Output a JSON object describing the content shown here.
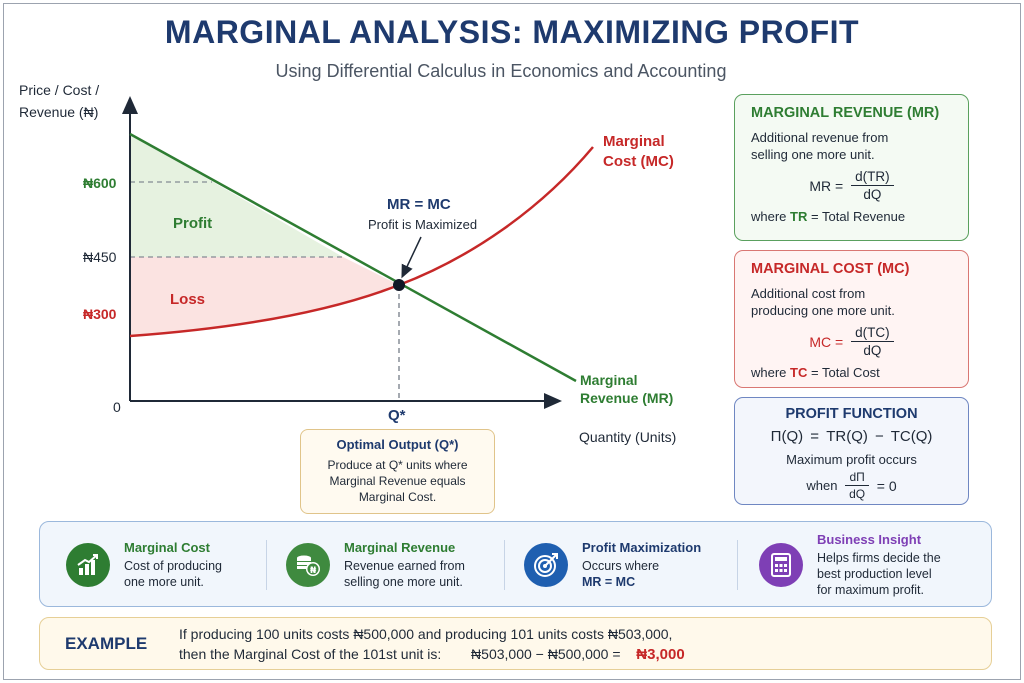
{
  "header": {
    "title": "MARGINAL ANALYSIS: MAXIMIZING PROFIT",
    "subtitle": "Using Differential Calculus in Economics and Accounting"
  },
  "colors": {
    "navy": "#1e3a6e",
    "green": "#2e7d32",
    "red": "#c62828",
    "purple": "#7e3fb5",
    "blue": "#1f5fb0"
  },
  "chart": {
    "y_axis_label_line1": "Price / Cost /",
    "y_axis_label_line2": "Revenue (₦)",
    "x_axis_label": "Quantity (Units)",
    "origin_label": "0",
    "y_ticks": [
      {
        "value": 600,
        "label": "₦600"
      },
      {
        "value": 450,
        "label": "₦450"
      },
      {
        "value": 300,
        "label": "₦300"
      }
    ],
    "q_star_label": "Q*",
    "mc_label_line1": "Marginal",
    "mc_label_line2": "Cost (MC)",
    "mr_label_line1": "Marginal",
    "mr_label_line2": "Revenue (MR)",
    "profit_label": "Profit",
    "loss_label": "Loss",
    "eq_label": "MR = MC",
    "eq_sub": "Profit is Maximized"
  },
  "optimal": {
    "title": "Optimal Output (Q*)",
    "lines": [
      "Produce at Q* units where",
      "Marginal Revenue equals",
      "Marginal Cost."
    ]
  },
  "cards": {
    "mr": {
      "title": "MARGINAL REVENUE (MR)",
      "desc_line1": "Additional revenue from",
      "desc_line2": "selling one more unit.",
      "lhs": "MR =",
      "num": "d(TR)",
      "den": "dQ",
      "where_pre": "where",
      "where_sym": "TR",
      "where_post": "= Total Revenue"
    },
    "mc": {
      "title": "MARGINAL COST (MC)",
      "desc_line1": "Additional cost from",
      "desc_line2": "producing one more unit.",
      "lhs": "MC =",
      "num": "d(TC)",
      "den": "dQ",
      "where_pre": "where",
      "where_sym": "TC",
      "where_post": "= Total Cost"
    },
    "profit": {
      "title": "PROFIT FUNCTION",
      "formula": "Π(Q)  =  TR(Q) − TC(Q)",
      "line1": "Maximum profit occurs",
      "when": "when",
      "num": "dΠ",
      "den": "dQ",
      "rhs": "= 0"
    }
  },
  "features": [
    {
      "title": "Marginal Cost",
      "line1": "Cost of producing",
      "line2": "one more unit.",
      "line3": "",
      "icon": "bar-chart-icon",
      "color": "#2e7d32"
    },
    {
      "title": "Marginal Revenue",
      "line1": "Revenue earned from",
      "line2": "selling one more unit.",
      "line3": "",
      "icon": "coins-icon",
      "color": "#2e7d32"
    },
    {
      "title": "Profit Maximization",
      "line1": "Occurs where",
      "line2": "MR = MC",
      "line3": "",
      "icon": "target-icon",
      "color": "#1f5fb0"
    },
    {
      "title": "Business Insight",
      "line1": "Helps firms decide the",
      "line2": "best production level",
      "line3": "for maximum profit.",
      "icon": "calculator-icon",
      "color": "#7e3fb5"
    }
  ],
  "example": {
    "label": "EXAMPLE",
    "line1": "If producing 100 units costs ₦500,000 and producing 101 units costs ₦503,000,",
    "line2_pre": "then the Marginal Cost of the 101st unit is:",
    "calc": "₦503,000 − ₦500,000 =",
    "result": "₦3,000"
  }
}
